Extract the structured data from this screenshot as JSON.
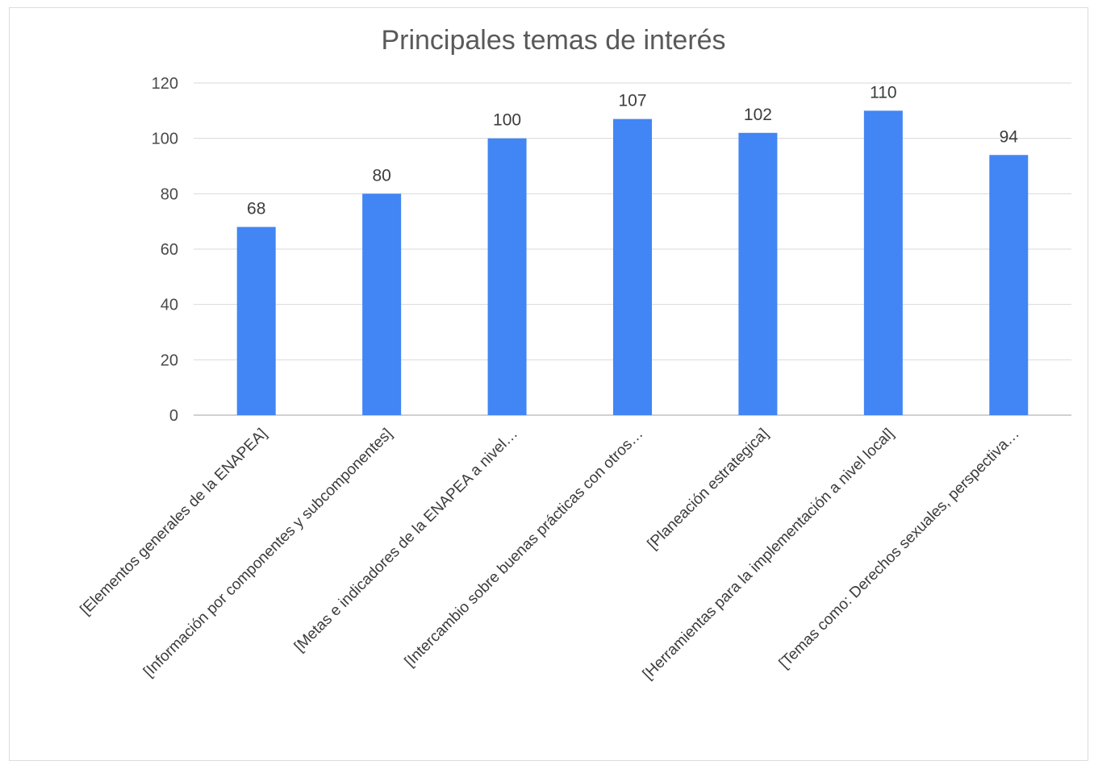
{
  "chart_data": {
    "type": "bar",
    "title": "Principales temas de interés",
    "xlabel": "",
    "ylabel": "",
    "categories": [
      "[Elementos generales de la ENAPEA]",
      "[Información por componentes y subcomponentes]",
      "[Metas e indicadores de la ENAPEA a nivel…",
      "[Intercambio sobre buenas prácticas con otros…",
      "[Planeación estrategica]",
      "[Herramientas para la implementación a nivel local]",
      "[Temas como: Derechos sexuales, perspectiva…"
    ],
    "values": [
      68,
      80,
      100,
      107,
      102,
      110,
      94
    ],
    "data_labels": [
      "68",
      "80",
      "100",
      "107",
      "102",
      "110",
      "94"
    ],
    "ylim": [
      0,
      120
    ],
    "yticks": [
      0,
      20,
      40,
      60,
      80,
      100,
      120
    ],
    "ytick_labels": [
      "0",
      "20",
      "40",
      "60",
      "80",
      "100",
      "120"
    ],
    "grid": true,
    "legend": "none",
    "bar_color": "#4285f4",
    "gridline_color": "#d9d9d9",
    "axis_line_color": "#c0c0c0"
  }
}
